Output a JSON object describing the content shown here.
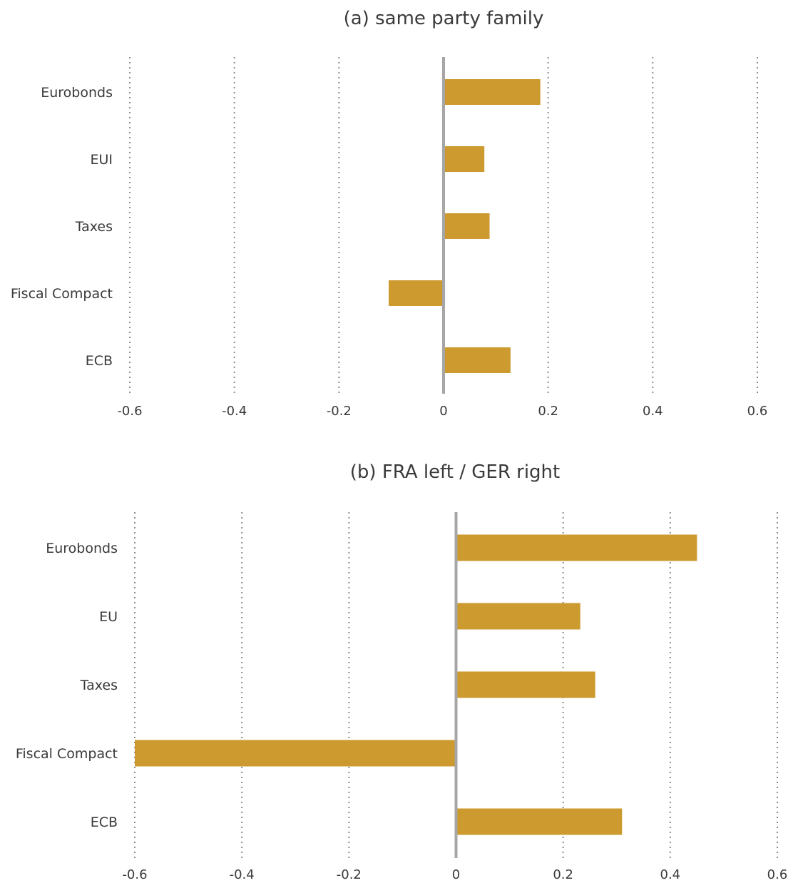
{
  "colors": {
    "bar": "#cc9a2e",
    "zero_line": "#a6a6a6",
    "grid": "#8c8c8c",
    "text": "#3a3a3a"
  },
  "chart_data": [
    {
      "type": "bar",
      "orientation": "horizontal",
      "title": "(a) same party family",
      "categories": [
        "Eurobonds",
        "EUI",
        "Taxes",
        "Fiscal Compact",
        "ECB"
      ],
      "values": [
        0.185,
        0.078,
        0.088,
        -0.105,
        0.128
      ],
      "xlim": [
        -0.6,
        0.6
      ],
      "xticks": [
        -0.6,
        -0.4,
        -0.2,
        0,
        0.2,
        0.4,
        0.6
      ],
      "xtick_labels": [
        "-0.6",
        "-0.4",
        "-0.2",
        "0",
        "0.2",
        "0.4",
        "0.6"
      ],
      "grid": "vertical dotted"
    },
    {
      "type": "bar",
      "orientation": "horizontal",
      "title": "(b) FRA left / GER right",
      "categories": [
        "Eurobonds",
        "EU",
        "Taxes",
        "Fiscal Compact",
        "ECB"
      ],
      "values": [
        0.45,
        0.232,
        0.26,
        -0.6,
        0.31
      ],
      "xlim": [
        -0.6,
        0.6
      ],
      "xticks": [
        -0.6,
        -0.4,
        -0.2,
        0,
        0.2,
        0.4,
        0.6
      ],
      "xtick_labels": [
        "-0.6",
        "-0.4",
        "-0.2",
        "0",
        "0.2",
        "0.4",
        "0.6"
      ],
      "grid": "vertical dotted"
    }
  ]
}
